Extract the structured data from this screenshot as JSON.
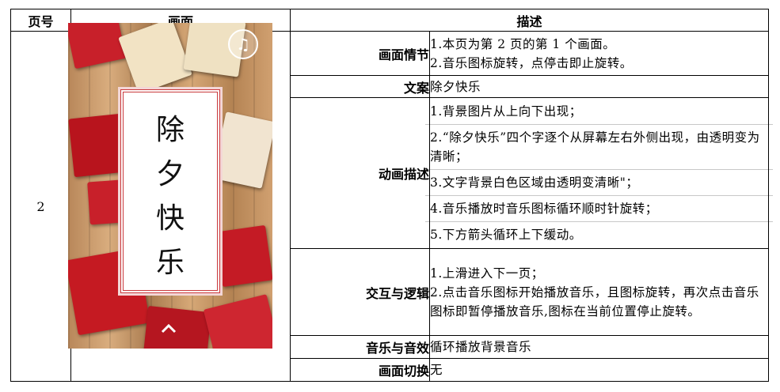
{
  "header": {
    "page_no": "页号",
    "screen": "画面",
    "description": "描述"
  },
  "page_no": "2",
  "preview": {
    "title_chars": [
      "除",
      "夕",
      "快",
      "乐"
    ],
    "music_icon": "music-note-icon",
    "arrow_icon": "chevron-up-icon"
  },
  "rows": {
    "plot": {
      "label": "画面情节",
      "lines": [
        "1.本页为第 2 页的第 1 个画面。",
        "2.音乐图标旋转，点停击即止旋转。"
      ]
    },
    "copy": {
      "label": "文案",
      "text": "除夕快乐"
    },
    "animation": {
      "label": "动画描述",
      "lines": [
        "1.背景图片从上向下出现；",
        "2.“除夕快乐”四个字逐个从屏幕左右外侧出现，由透明变为清晰；",
        "3.文字背景白色区域由透明变清晰\"；",
        "4.音乐播放时音乐图标循环顺时针旋转；",
        "5.下方箭头循环上下缓动。"
      ]
    },
    "interaction": {
      "label": "交互与逻辑",
      "lines": [
        "1.上滑进入下一页；",
        "2.点击音乐图标开始播放音乐，且图标旋转，再次点击音乐图标即暂停播放音乐,图标在当前位置停止旋转。"
      ]
    },
    "sound": {
      "label": "音乐与音效",
      "text": "循环播放背景音乐"
    },
    "transition": {
      "label": "画面切换",
      "text": "无"
    }
  }
}
